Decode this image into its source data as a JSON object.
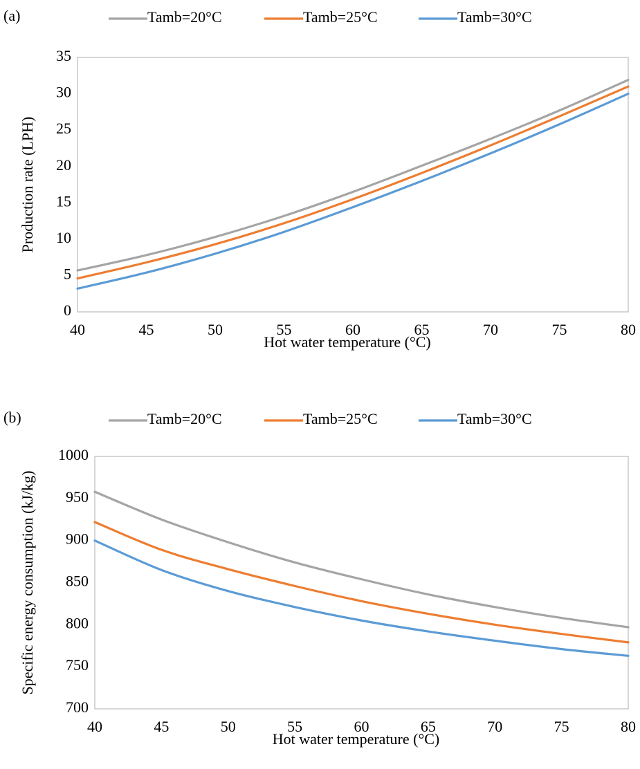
{
  "chart_data": [
    {
      "panel_label": "(a)",
      "type": "line",
      "xlabel": "Hot water temperature (°C)",
      "ylabel": "Production rate (LPH)",
      "xlim": [
        40,
        80
      ],
      "ylim": [
        0,
        35
      ],
      "xticks": [
        40,
        45,
        50,
        55,
        60,
        65,
        70,
        75,
        80
      ],
      "yticks": [
        0,
        5,
        10,
        15,
        20,
        25,
        30,
        35
      ],
      "grid": false,
      "legend_position": "top",
      "x": [
        40,
        45,
        50,
        55,
        60,
        65,
        70,
        75,
        80
      ],
      "series": [
        {
          "name": "Tamb=20°C",
          "color": "#a5a5a5",
          "values": [
            5.7,
            7.8,
            10.3,
            13.2,
            16.5,
            20.1,
            23.8,
            27.7,
            31.9
          ]
        },
        {
          "name": "Tamb=25°C",
          "color": "#ed7d31",
          "values": [
            4.6,
            6.8,
            9.3,
            12.2,
            15.5,
            19.1,
            22.9,
            26.9,
            31.0
          ]
        },
        {
          "name": "Tamb=30°C",
          "color": "#5b9bd5",
          "values": [
            3.2,
            5.4,
            8.0,
            11.0,
            14.4,
            18.0,
            21.8,
            25.8,
            30.0
          ]
        }
      ]
    },
    {
      "panel_label": "(b)",
      "type": "line",
      "xlabel": "Hot water temperature (°C)",
      "ylabel": "Specific energy consumption (kJ/kg)",
      "xlim": [
        40,
        80
      ],
      "ylim": [
        700,
        1000
      ],
      "xticks": [
        40,
        45,
        50,
        55,
        60,
        65,
        70,
        75,
        80
      ],
      "yticks": [
        700,
        750,
        800,
        850,
        900,
        950,
        1000
      ],
      "grid": false,
      "legend_position": "top",
      "x": [
        40,
        45,
        50,
        55,
        60,
        65,
        70,
        75,
        80
      ],
      "series": [
        {
          "name": "Tamb=20°C",
          "color": "#a5a5a5",
          "values": [
            958,
            925,
            898,
            874,
            854,
            836,
            821,
            808,
            797
          ]
        },
        {
          "name": "Tamb=25°C",
          "color": "#ed7d31",
          "values": [
            922,
            889,
            866,
            846,
            828,
            813,
            800,
            789,
            779
          ]
        },
        {
          "name": "Tamb=30°C",
          "color": "#5b9bd5",
          "values": [
            900,
            865,
            840,
            821,
            805,
            792,
            781,
            771,
            763
          ]
        }
      ]
    }
  ]
}
